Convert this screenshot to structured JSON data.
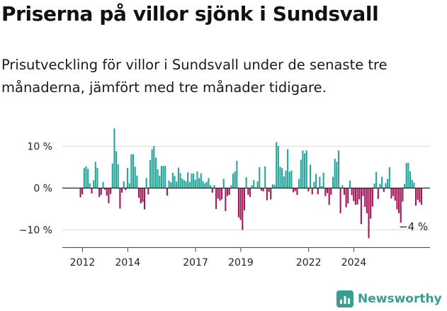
{
  "header": {
    "title": "Priserna på villor sjönk i Sundsvall",
    "subtitle": "Prisutveckling för villor i Sundsvall under de senaste tre månaderna, jämfört med tre månader tidigare."
  },
  "brand": {
    "name": "Newsworthy",
    "icon": "newsworthy-chart-icon",
    "color": "#3a9d8f"
  },
  "chart_data": {
    "type": "bar",
    "x_start_month": "2011-12",
    "x_tick_labels": [
      "2012",
      "2014",
      "2017",
      "2019",
      "2022",
      "2024"
    ],
    "x_tick_months": [
      "2012-01",
      "2014-01",
      "2017-01",
      "2019-01",
      "2022-01",
      "2024-01"
    ],
    "y_tick_labels": [
      "10 %",
      "0 %",
      "−10 %"
    ],
    "y_tick_values": [
      10,
      0,
      -10
    ],
    "ylim": [
      -12.5,
      15
    ],
    "grid": true,
    "annotation": {
      "text": "−4 %",
      "value": -4
    },
    "positive_color": "#26a69a",
    "negative_color": "#a3185a",
    "values": [
      -2.2,
      -1.5,
      4.8,
      5.2,
      4.6,
      1.1,
      -1.3,
      1.9,
      6.3,
      4.8,
      -2.1,
      -1.6,
      1.5,
      -0.4,
      -1.8,
      -3.6,
      -1.4,
      5.9,
      14.3,
      8.8,
      5.7,
      -4.9,
      -1.1,
      1.6,
      -0.5,
      4.8,
      1.1,
      8.1,
      8.1,
      5.1,
      3.0,
      -2.3,
      -3.7,
      -3.3,
      -5.1,
      2.4,
      -1.5,
      6.7,
      9.3,
      10.1,
      7.3,
      4.5,
      3.0,
      5.3,
      5.3,
      5.3,
      -1.8,
      1.8,
      1.4,
      3.7,
      2.9,
      1.6,
      4.9,
      3.6,
      2.3,
      1.9,
      1.6,
      3.8,
      1.5,
      3.5,
      3.5,
      2.0,
      4.0,
      2.4,
      3.5,
      1.7,
      1.1,
      1.5,
      2.4,
      0.7,
      -1.1,
      0.7,
      -5.0,
      -2.5,
      -3.0,
      -2.7,
      2.2,
      -5.5,
      -1.9,
      -1.6,
      0.7,
      3.5,
      4.0,
      6.5,
      -7.0,
      -7.6,
      -10.0,
      -5.3,
      2.6,
      -1.6,
      -2.1,
      0.7,
      1.9,
      0.2,
      1.6,
      5.0,
      -0.6,
      -0.8,
      5.2,
      -2.9,
      -0.9,
      -2.7,
      0.9,
      0.8,
      11.0,
      10.1,
      5.1,
      4.8,
      2.8,
      4.2,
      9.3,
      3.9,
      4.2,
      -1.0,
      -0.7,
      -1.6,
      2.2,
      6.8,
      9.0,
      8.3,
      9.0,
      -0.8,
      5.6,
      -1.5,
      1.5,
      3.4,
      -1.5,
      2.7,
      0.5,
      3.7,
      -1.9,
      -1.2,
      -4.0,
      -1.6,
      2.7,
      7.0,
      6.3,
      9.0,
      -6.0,
      0.7,
      -1.6,
      -4.6,
      -3.7,
      1.8,
      -1.7,
      -3.1,
      -4.0,
      -3.9,
      -2.7,
      -8.6,
      -1.9,
      -4.5,
      -6.0,
      -12.0,
      -7.3,
      -4.4,
      1.1,
      3.9,
      -2.6,
      1.0,
      2.7,
      -0.9,
      1.2,
      2.2,
      5.0,
      -2.5,
      -1.9,
      -3.0,
      -5.1,
      -6.0,
      -8.3,
      -3.2,
      1.0,
      6.0,
      6.0,
      4.0,
      2.0,
      1.3,
      -4.2,
      -2.8,
      -3.4,
      -4.0
    ]
  }
}
